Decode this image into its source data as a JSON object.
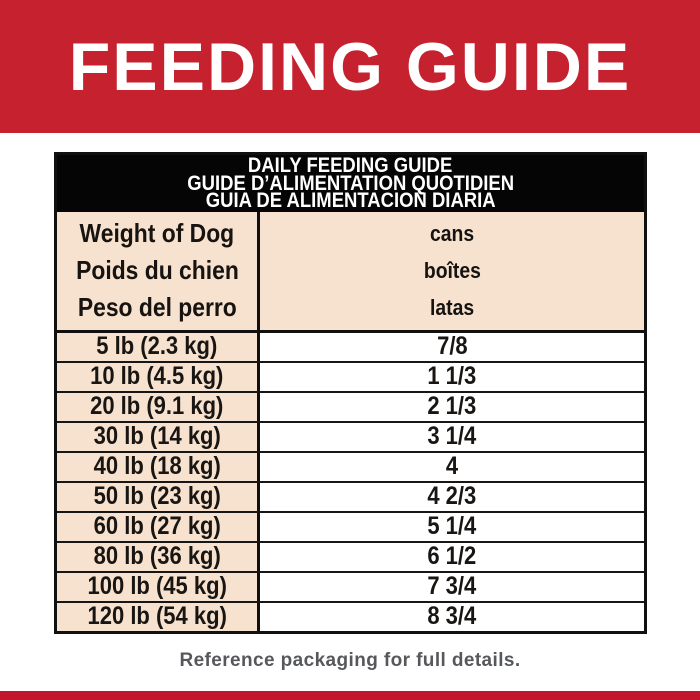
{
  "banner": {
    "title": "FEEDING GUIDE"
  },
  "table": {
    "title_lines": [
      "DAILY FEEDING GUIDE",
      "GUIDE D’ALIMENTATION QUOTIDIEN",
      "GUIA DE ALIMENTACION DIARIA"
    ],
    "col_headers": {
      "weight": [
        "Weight of Dog",
        "Poids du chien",
        "Peso del perro"
      ],
      "cans": [
        "cans",
        "boîtes",
        "latas"
      ]
    },
    "rows": [
      {
        "weight": "5 lb (2.3 kg)",
        "cans": "7/8"
      },
      {
        "weight": "10 lb (4.5 kg)",
        "cans": "1 1/3"
      },
      {
        "weight": "20 lb (9.1 kg)",
        "cans": "2 1/3"
      },
      {
        "weight": "30 lb (14 kg)",
        "cans": "3 1/4"
      },
      {
        "weight": "40 lb (18 kg)",
        "cans": "4"
      },
      {
        "weight": "50 lb (23 kg)",
        "cans": "4 2/3"
      },
      {
        "weight": "60 lb (27 kg)",
        "cans": "5 1/4"
      },
      {
        "weight": "80 lb (36 kg)",
        "cans": "6 1/2"
      },
      {
        "weight": "100 lb (45 kg)",
        "cans": "7 3/4"
      },
      {
        "weight": "120 lb (54 kg)",
        "cans": "8 3/4"
      }
    ]
  },
  "footer": {
    "note": "Reference packaging for full details."
  },
  "colors": {
    "banner_red": "#c5212f",
    "strip_red": "#c3152c",
    "band_black": "#050505",
    "cell_peach": "#f6e2cf",
    "cell_white": "#ffffff",
    "footer_gray": "#57585b"
  }
}
